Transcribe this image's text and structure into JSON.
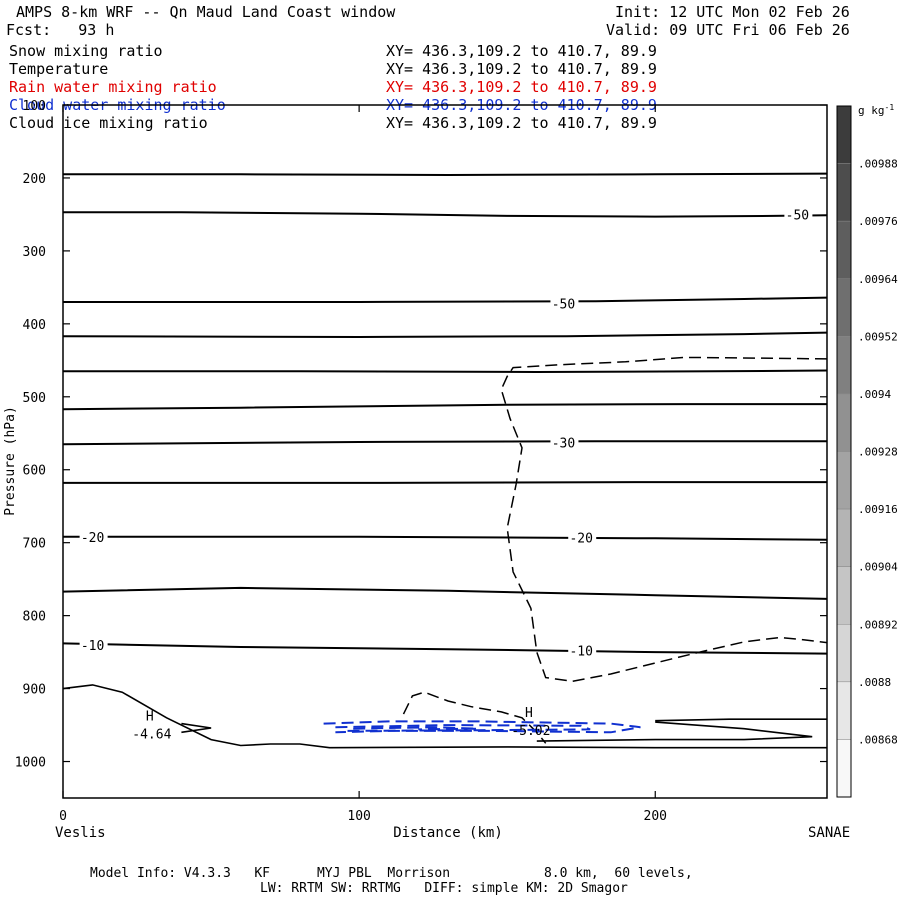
{
  "header": {
    "title": "AMPS 8-km WRF -- Qn Maud Land Coast window",
    "forecast": "Fcst:   93 h",
    "init": "Init: 12 UTC Mon 02 Feb 26",
    "valid": "Valid: 09 UTC Fri 06 Feb 26"
  },
  "fields": [
    {
      "name": "Snow mixing ratio",
      "xy": "XY= 436.3,109.2 to 410.7, 89.9",
      "color": "#000000"
    },
    {
      "name": "Temperature",
      "xy": "XY= 436.3,109.2 to 410.7, 89.9",
      "color": "#000000"
    },
    {
      "name": "Rain water mixing ratio",
      "xy": "XY= 436.3,109.2 to 410.7, 89.9",
      "color": "#e00000"
    },
    {
      "name": "Cloud water mixing ratio",
      "xy": "XY= 436.3,109.2 to 410.7, 89.9",
      "color": "#1030d0"
    },
    {
      "name": "Cloud ice mixing ratio",
      "xy": "XY= 436.3,109.2 to 410.7, 89.9",
      "color": "#000000"
    }
  ],
  "footer": {
    "line1": "Model Info: V4.3.3   KF      MYJ PBL  Morrison            8.0 km,  60 levels,",
    "line2": "LW: RRTM SW: RRTMG   DIFF: simple KM: 2D Smagor"
  },
  "chart_data": {
    "type": "contour",
    "title": "AMPS 8-km WRF -- Qn Maud Land Coast window",
    "xlabel": "Distance (km)",
    "ylabel": "Pressure (hPa)",
    "xlim": [
      0,
      258
    ],
    "ylim": [
      100,
      1050
    ],
    "x_ticks": [
      0,
      100,
      200
    ],
    "y_ticks": [
      100,
      200,
      300,
      400,
      500,
      600,
      700,
      800,
      900,
      1000
    ],
    "x_endpoints": {
      "left": "Veslis",
      "right": "SANAE"
    },
    "temperature_isotherms": [
      {
        "points": [
          [
            0,
            195
          ],
          [
            60,
            195
          ],
          [
            130,
            196
          ],
          [
            200,
            195
          ],
          [
            258,
            194
          ]
        ]
      },
      {
        "points": [
          [
            0,
            247
          ],
          [
            40,
            247
          ],
          [
            100,
            249
          ],
          [
            150,
            252
          ],
          [
            200,
            253
          ],
          [
            240,
            252
          ],
          [
            258,
            251
          ]
        ]
      },
      {
        "points": [
          [
            0,
            370
          ],
          [
            100,
            370
          ],
          [
            180,
            369
          ],
          [
            230,
            366
          ],
          [
            258,
            364
          ]
        ]
      },
      {
        "points": [
          [
            0,
            417
          ],
          [
            100,
            418
          ],
          [
            170,
            417
          ],
          [
            230,
            414
          ],
          [
            258,
            412
          ]
        ]
      },
      {
        "points": [
          [
            0,
            465
          ],
          [
            80,
            465
          ],
          [
            160,
            466
          ],
          [
            220,
            465
          ],
          [
            258,
            464
          ]
        ]
      },
      {
        "points": [
          [
            0,
            517
          ],
          [
            60,
            515
          ],
          [
            150,
            511
          ],
          [
            210,
            510
          ],
          [
            258,
            510
          ]
        ]
      },
      {
        "points": [
          [
            0,
            565
          ],
          [
            100,
            562
          ],
          [
            180,
            561
          ],
          [
            258,
            561
          ]
        ]
      },
      {
        "points": [
          [
            0,
            618
          ],
          [
            100,
            618
          ],
          [
            200,
            617
          ],
          [
            258,
            617
          ]
        ]
      },
      {
        "points": [
          [
            0,
            692
          ],
          [
            100,
            692
          ],
          [
            200,
            694
          ],
          [
            258,
            696
          ]
        ]
      },
      {
        "points": [
          [
            0,
            767
          ],
          [
            60,
            762
          ],
          [
            130,
            766
          ],
          [
            200,
            772
          ],
          [
            258,
            777
          ]
        ]
      },
      {
        "points": [
          [
            0,
            838
          ],
          [
            60,
            843
          ],
          [
            130,
            846
          ],
          [
            200,
            850
          ],
          [
            258,
            852
          ]
        ]
      }
    ],
    "temperature_labels": [
      {
        "x": 248,
        "p": 250,
        "text": "-50"
      },
      {
        "x": 169,
        "p": 372,
        "text": "-50"
      },
      {
        "x": 169,
        "p": 563,
        "text": "-30"
      },
      {
        "x": 10,
        "p": 692,
        "text": "-20"
      },
      {
        "x": 175,
        "p": 693,
        "text": "-20"
      },
      {
        "x": 10,
        "p": 840,
        "text": "-10"
      },
      {
        "x": 175,
        "p": 848,
        "text": "-10"
      }
    ],
    "temperature_extrema": [
      {
        "x": 30,
        "p": 955,
        "label": "H",
        "value": "-4.64"
      },
      {
        "x": 158,
        "p": 950,
        "label": "H",
        "value": "-5.02"
      }
    ],
    "snow_dashed_contours": [
      {
        "points": [
          [
            258,
            448
          ],
          [
            235,
            447
          ],
          [
            210,
            446
          ],
          [
            190,
            452
          ],
          [
            168,
            456
          ],
          [
            152,
            460
          ],
          [
            150,
            472
          ],
          [
            148,
            490
          ],
          [
            151,
            530
          ],
          [
            155,
            570
          ],
          [
            153,
            620
          ],
          [
            150,
            680
          ],
          [
            152,
            740
          ],
          [
            158,
            790
          ],
          [
            160,
            850
          ],
          [
            163,
            885
          ],
          [
            172,
            890
          ],
          [
            185,
            880
          ],
          [
            200,
            865
          ],
          [
            215,
            850
          ],
          [
            230,
            836
          ],
          [
            242,
            830
          ],
          [
            250,
            833
          ],
          [
            258,
            837
          ]
        ]
      },
      {
        "points": [
          [
            115,
            935
          ],
          [
            118,
            910
          ],
          [
            122,
            905
          ],
          [
            130,
            917
          ],
          [
            138,
            925
          ],
          [
            148,
            932
          ],
          [
            155,
            940
          ],
          [
            160,
            960
          ],
          [
            163,
            975
          ]
        ]
      }
    ],
    "cloud_water_contours": [
      {
        "points": [
          [
            88,
            948
          ],
          [
            110,
            945
          ],
          [
            140,
            945
          ],
          [
            185,
            948
          ],
          [
            195,
            953
          ],
          [
            185,
            960
          ],
          [
            145,
            958
          ],
          [
            110,
            958
          ],
          [
            92,
            960
          ]
        ]
      },
      {
        "points": [
          [
            92,
            953
          ],
          [
            130,
            950
          ],
          [
            175,
            951
          ],
          [
            178,
            956
          ],
          [
            140,
            957
          ],
          [
            96,
            958
          ]
        ]
      },
      {
        "points": [
          [
            98,
            955
          ],
          [
            125,
            953
          ],
          [
            140,
            955
          ],
          [
            120,
            956
          ]
        ]
      }
    ],
    "terrain_lines": [
      {
        "points": [
          [
            0,
            900
          ],
          [
            10,
            895
          ],
          [
            20,
            905
          ],
          [
            35,
            940
          ],
          [
            50,
            970
          ],
          [
            60,
            978
          ],
          [
            70,
            976
          ],
          [
            80,
            976
          ],
          [
            90,
            981
          ],
          [
            150,
            980
          ],
          [
            200,
            981
          ],
          [
            258,
            981
          ]
        ]
      },
      {
        "points": [
          [
            40,
            960
          ],
          [
            50,
            954
          ],
          [
            40,
            948
          ]
        ]
      },
      {
        "points": [
          [
            200,
            944
          ],
          [
            225,
            942
          ],
          [
            258,
            942
          ]
        ]
      },
      {
        "points": [
          [
            200,
            946
          ],
          [
            230,
            955
          ],
          [
            253,
            966
          ],
          [
            230,
            970
          ],
          [
            200,
            970
          ],
          [
            160,
            972
          ]
        ]
      }
    ],
    "colorbar": {
      "unit": "g kg",
      "unit_superscript": "-1",
      "labels": [
        ".00988",
        ".00976",
        ".00964",
        ".00952",
        ".0094",
        ".00928",
        ".00916",
        ".00904",
        ".00892",
        ".0088",
        ".00868"
      ]
    }
  }
}
